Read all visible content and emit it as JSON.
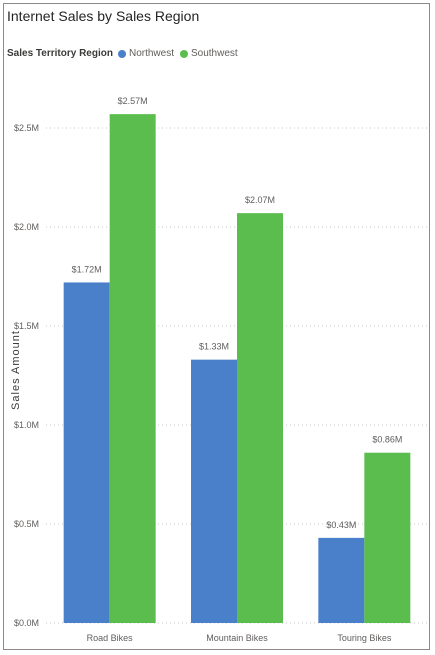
{
  "chart_data": {
    "type": "bar",
    "title": "Internet Sales by Sales Region",
    "legend_title": "Sales Territory Region",
    "legend_position": "top-left",
    "categories": [
      "Road Bikes",
      "Mountain Bikes",
      "Touring Bikes"
    ],
    "series": [
      {
        "name": "Northwest",
        "color": "#4a7fc9",
        "values": [
          1.72,
          1.33,
          0.43
        ],
        "labels": [
          "$1.72M",
          "$1.33M",
          "$0.43M"
        ]
      },
      {
        "name": "Southwest",
        "color": "#5cbd4f",
        "values": [
          2.57,
          2.07,
          0.86
        ],
        "labels": [
          "$2.57M",
          "$2.07M",
          "$0.86M"
        ]
      }
    ],
    "ylabel": "Sales Amount",
    "xlabel": "",
    "ylim": [
      0,
      3.0
    ],
    "yticks": [
      0,
      0.5,
      1.0,
      1.5,
      2.0,
      2.5
    ],
    "ytick_labels": [
      "$0.0M",
      "$0.5M",
      "$1.0M",
      "$1.5M",
      "$2.0M",
      "$2.5M"
    ],
    "grid": true
  }
}
